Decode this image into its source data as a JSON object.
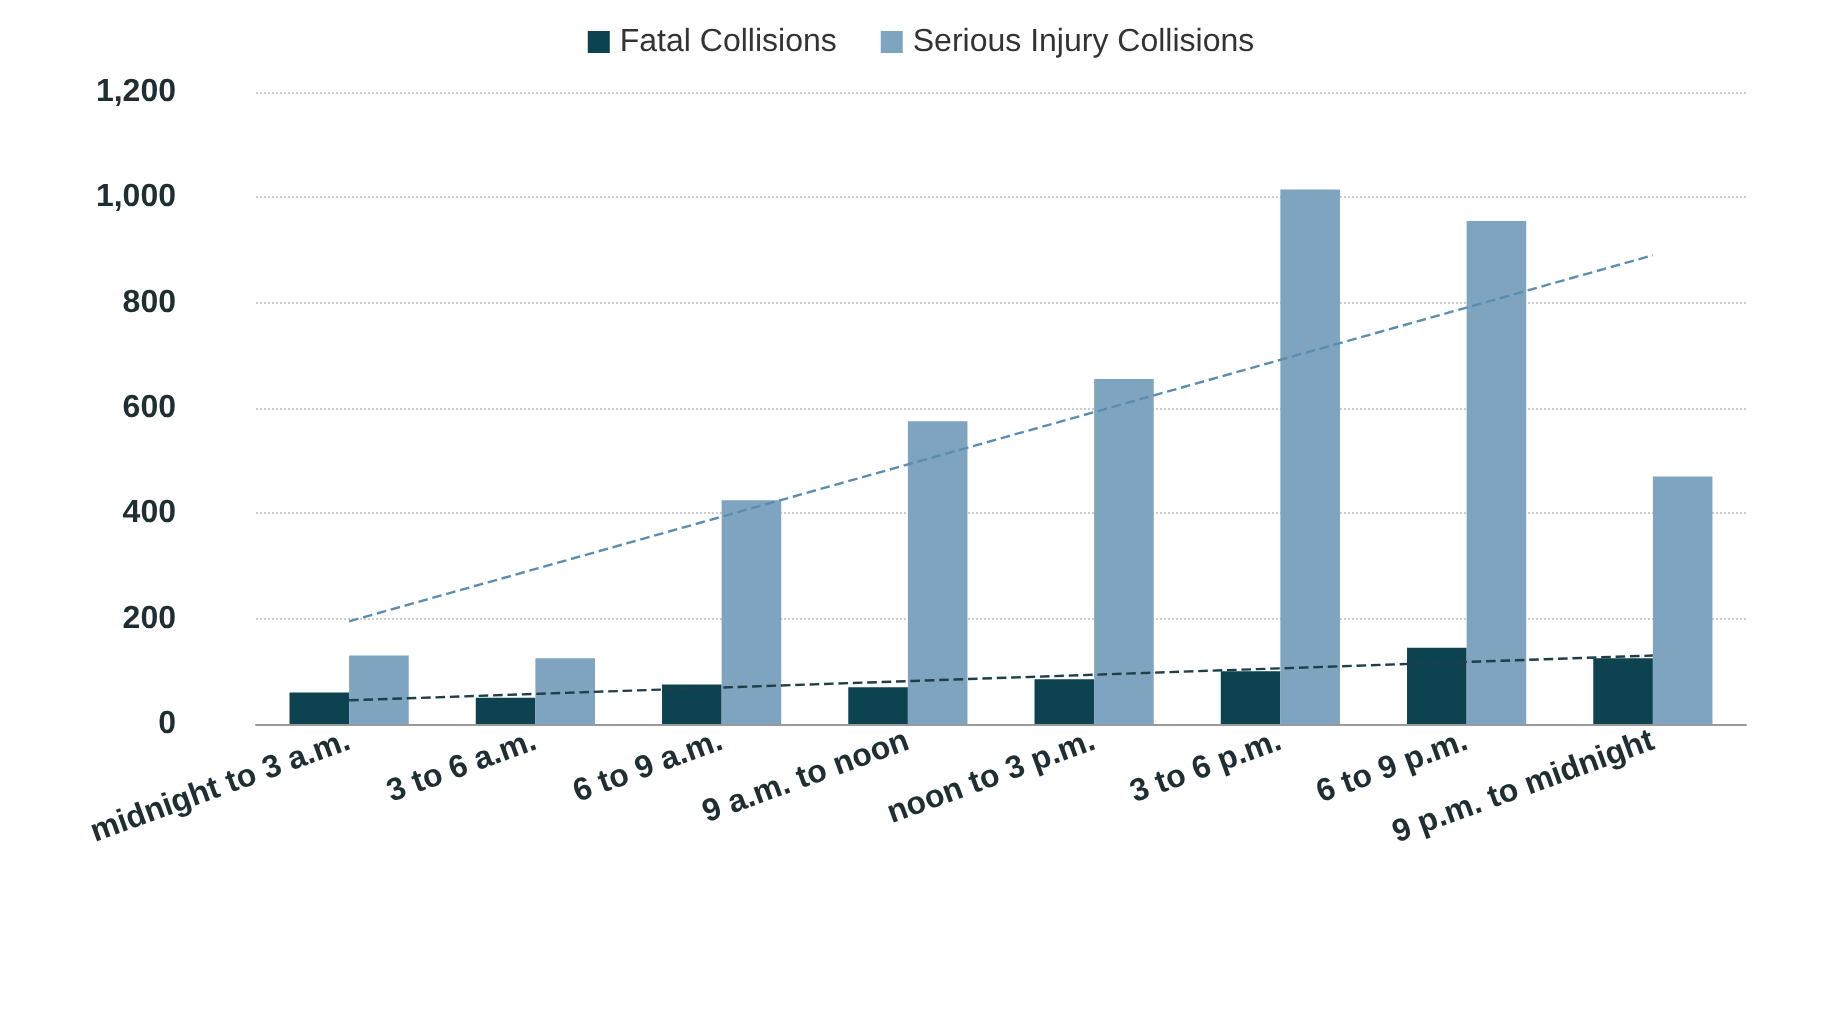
{
  "chart_data": {
    "type": "bar",
    "categories": [
      "midnight to 3 a.m.",
      "3 to 6 a.m.",
      "6 to 9 a.m.",
      "9 a.m. to noon",
      "noon to 3 p.m.",
      "3 to 6 p.m.",
      "6 to 9 p.m.",
      "9 p.m. to midnight"
    ],
    "series": [
      {
        "name": "Fatal Collisions",
        "color": "#0d4250",
        "values": [
          60,
          50,
          75,
          70,
          85,
          100,
          145,
          125
        ]
      },
      {
        "name": "Serious Injury Collisions",
        "color": "#7fa4c0",
        "values": [
          130,
          125,
          425,
          575,
          655,
          1015,
          955,
          470
        ]
      },
      {
        "type": "line",
        "color": "#5b8db0",
        "line_style": "dashed",
        "marker": "none",
        "x": [
          "midnight to 3 a.m.",
          "9 p.m. to midnight"
        ],
        "values": [
          195,
          890
        ]
      },
      {
        "type": "line",
        "color": "#1e3f4a",
        "line_style": "dashed",
        "marker": "none",
        "x": [
          "midnight to 3 a.m.",
          "9 p.m. to midnight"
        ],
        "values": [
          45,
          130
        ]
      }
    ],
    "ylim": [
      0,
      1200
    ],
    "yticks": [
      0,
      {
        "value": 200,
        "label": "200"
      },
      {
        "value": 400,
        "label": "400"
      },
      {
        "value": 600,
        "label": "600"
      },
      {
        "value": 800,
        "label": "800"
      },
      {
        "value": 1000,
        "label": "1,000"
      },
      {
        "value": 1200,
        "label": "1,200"
      }
    ],
    "grid": "y",
    "legend": "top"
  }
}
